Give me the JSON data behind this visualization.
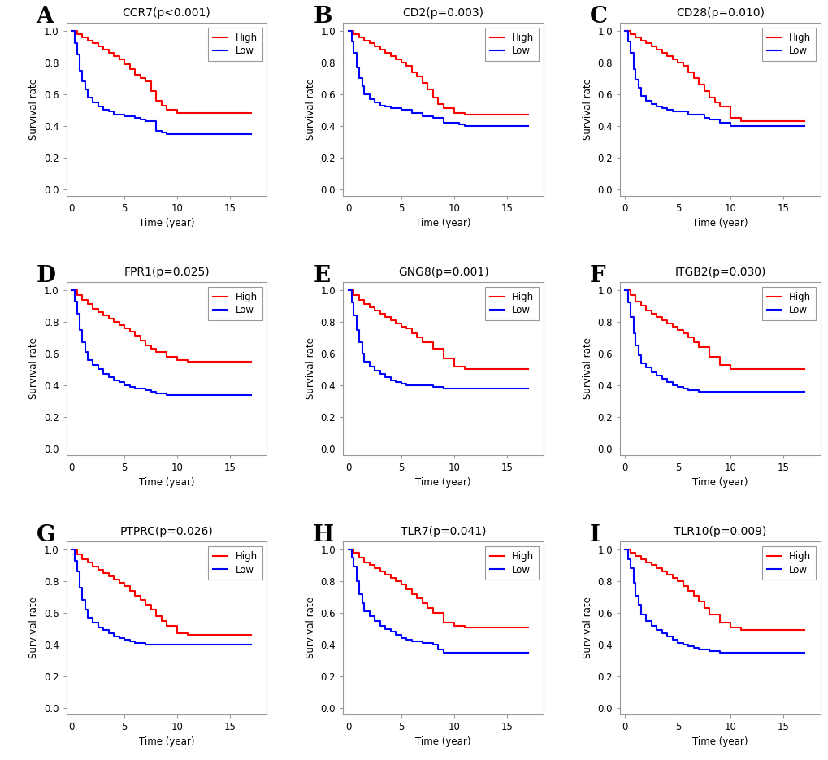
{
  "panels": [
    {
      "label": "A",
      "title": "CCR7(p<0.001)",
      "high": {
        "x": [
          0,
          0.5,
          1.0,
          1.5,
          2.0,
          2.5,
          3.0,
          3.5,
          4.0,
          4.5,
          5.0,
          5.5,
          6.0,
          6.5,
          7.0,
          7.5,
          8.0,
          8.5,
          9.0,
          10.0,
          11.0,
          17.0
        ],
        "y": [
          1.0,
          0.98,
          0.96,
          0.94,
          0.92,
          0.9,
          0.88,
          0.86,
          0.84,
          0.82,
          0.79,
          0.76,
          0.72,
          0.7,
          0.68,
          0.62,
          0.56,
          0.53,
          0.5,
          0.48,
          0.48,
          0.48
        ]
      },
      "low": {
        "x": [
          0,
          0.3,
          0.5,
          0.8,
          1.0,
          1.3,
          1.5,
          2.0,
          2.5,
          3.0,
          3.5,
          4.0,
          5.0,
          6.0,
          6.5,
          7.0,
          8.0,
          8.5,
          9.0,
          11.0,
          17.0
        ],
        "y": [
          1.0,
          0.92,
          0.85,
          0.75,
          0.68,
          0.63,
          0.58,
          0.55,
          0.52,
          0.5,
          0.49,
          0.47,
          0.46,
          0.45,
          0.44,
          0.43,
          0.37,
          0.36,
          0.35,
          0.35,
          0.35
        ]
      }
    },
    {
      "label": "B",
      "title": "CD2(p=0.003)",
      "high": {
        "x": [
          0,
          0.5,
          1.0,
          1.5,
          2.0,
          2.5,
          3.0,
          3.5,
          4.0,
          4.5,
          5.0,
          5.5,
          6.0,
          6.5,
          7.0,
          7.5,
          8.0,
          8.5,
          9.0,
          10.0,
          11.0,
          13.0,
          17.0
        ],
        "y": [
          1.0,
          0.98,
          0.96,
          0.94,
          0.92,
          0.9,
          0.88,
          0.86,
          0.84,
          0.82,
          0.8,
          0.78,
          0.74,
          0.71,
          0.67,
          0.63,
          0.58,
          0.54,
          0.51,
          0.48,
          0.47,
          0.47,
          0.47
        ]
      },
      "low": {
        "x": [
          0,
          0.3,
          0.5,
          0.8,
          1.0,
          1.3,
          1.5,
          2.0,
          2.5,
          3.0,
          3.5,
          4.0,
          5.0,
          6.0,
          7.0,
          8.0,
          9.0,
          10.5,
          11.0,
          17.0
        ],
        "y": [
          1.0,
          0.93,
          0.86,
          0.77,
          0.7,
          0.65,
          0.6,
          0.57,
          0.55,
          0.53,
          0.52,
          0.51,
          0.5,
          0.48,
          0.46,
          0.45,
          0.42,
          0.41,
          0.4,
          0.4
        ]
      }
    },
    {
      "label": "C",
      "title": "CD28(p=0.010)",
      "high": {
        "x": [
          0,
          0.5,
          1.0,
          1.5,
          2.0,
          2.5,
          3.0,
          3.5,
          4.0,
          4.5,
          5.0,
          5.5,
          6.0,
          6.5,
          7.0,
          7.5,
          8.0,
          8.5,
          9.0,
          10.0,
          11.0,
          17.0
        ],
        "y": [
          1.0,
          0.98,
          0.96,
          0.94,
          0.92,
          0.9,
          0.88,
          0.86,
          0.84,
          0.82,
          0.8,
          0.78,
          0.74,
          0.7,
          0.66,
          0.62,
          0.58,
          0.55,
          0.52,
          0.45,
          0.43,
          0.43
        ]
      },
      "low": {
        "x": [
          0,
          0.3,
          0.5,
          0.8,
          1.0,
          1.3,
          1.5,
          2.0,
          2.5,
          3.0,
          3.5,
          4.0,
          4.5,
          5.0,
          6.0,
          7.5,
          8.0,
          9.0,
          10.0,
          11.0,
          17.0
        ],
        "y": [
          1.0,
          0.93,
          0.86,
          0.76,
          0.69,
          0.64,
          0.59,
          0.56,
          0.54,
          0.52,
          0.51,
          0.5,
          0.49,
          0.49,
          0.47,
          0.45,
          0.44,
          0.42,
          0.4,
          0.4,
          0.4
        ]
      }
    },
    {
      "label": "D",
      "title": "FPR1(p=0.025)",
      "high": {
        "x": [
          0,
          0.5,
          1.0,
          1.5,
          2.0,
          2.5,
          3.0,
          3.5,
          4.0,
          4.5,
          5.0,
          5.5,
          6.0,
          6.5,
          7.0,
          7.5,
          8.0,
          9.0,
          10.0,
          11.0,
          17.0
        ],
        "y": [
          1.0,
          0.97,
          0.94,
          0.91,
          0.88,
          0.86,
          0.84,
          0.82,
          0.8,
          0.78,
          0.76,
          0.74,
          0.71,
          0.68,
          0.65,
          0.63,
          0.61,
          0.58,
          0.56,
          0.55,
          0.55
        ]
      },
      "low": {
        "x": [
          0,
          0.3,
          0.5,
          0.8,
          1.0,
          1.3,
          1.5,
          2.0,
          2.5,
          3.0,
          3.5,
          4.0,
          4.5,
          5.0,
          5.5,
          6.0,
          7.0,
          7.5,
          8.0,
          9.0,
          10.0,
          17.0
        ],
        "y": [
          1.0,
          0.93,
          0.85,
          0.75,
          0.67,
          0.61,
          0.56,
          0.53,
          0.5,
          0.47,
          0.45,
          0.43,
          0.42,
          0.4,
          0.39,
          0.38,
          0.37,
          0.36,
          0.35,
          0.34,
          0.34,
          0.34
        ]
      }
    },
    {
      "label": "E",
      "title": "GNG8(p=0.001)",
      "high": {
        "x": [
          0,
          0.5,
          1.0,
          1.5,
          2.0,
          2.5,
          3.0,
          3.5,
          4.0,
          4.5,
          5.0,
          5.5,
          6.0,
          6.5,
          7.0,
          8.0,
          9.0,
          10.0,
          11.0,
          17.0
        ],
        "y": [
          1.0,
          0.97,
          0.94,
          0.91,
          0.89,
          0.87,
          0.85,
          0.83,
          0.81,
          0.79,
          0.77,
          0.76,
          0.73,
          0.7,
          0.67,
          0.63,
          0.57,
          0.52,
          0.5,
          0.5
        ]
      },
      "low": {
        "x": [
          0,
          0.3,
          0.5,
          0.8,
          1.0,
          1.3,
          1.5,
          2.0,
          2.5,
          3.0,
          3.5,
          4.0,
          4.5,
          5.0,
          5.5,
          6.0,
          7.0,
          8.0,
          9.0,
          11.0,
          17.0
        ],
        "y": [
          1.0,
          0.92,
          0.84,
          0.75,
          0.67,
          0.6,
          0.55,
          0.52,
          0.49,
          0.47,
          0.45,
          0.43,
          0.42,
          0.41,
          0.4,
          0.4,
          0.4,
          0.39,
          0.38,
          0.38,
          0.38
        ]
      }
    },
    {
      "label": "F",
      "title": "ITGB2(p=0.030)",
      "high": {
        "x": [
          0,
          0.5,
          1.0,
          1.5,
          2.0,
          2.5,
          3.0,
          3.5,
          4.0,
          4.5,
          5.0,
          5.5,
          6.0,
          6.5,
          7.0,
          8.0,
          9.0,
          10.0,
          11.0,
          17.0
        ],
        "y": [
          1.0,
          0.97,
          0.93,
          0.9,
          0.87,
          0.85,
          0.83,
          0.81,
          0.79,
          0.77,
          0.75,
          0.73,
          0.7,
          0.67,
          0.64,
          0.58,
          0.53,
          0.5,
          0.5,
          0.5
        ]
      },
      "low": {
        "x": [
          0,
          0.3,
          0.5,
          0.8,
          1.0,
          1.3,
          1.5,
          2.0,
          2.5,
          3.0,
          3.5,
          4.0,
          4.5,
          5.0,
          5.5,
          6.0,
          7.0,
          8.0,
          9.0,
          11.0,
          17.0
        ],
        "y": [
          1.0,
          0.92,
          0.83,
          0.73,
          0.65,
          0.59,
          0.54,
          0.51,
          0.48,
          0.46,
          0.44,
          0.42,
          0.4,
          0.39,
          0.38,
          0.37,
          0.36,
          0.36,
          0.36,
          0.36,
          0.36
        ]
      }
    },
    {
      "label": "G",
      "title": "PTPRC(p=0.026)",
      "high": {
        "x": [
          0,
          0.5,
          1.0,
          1.5,
          2.0,
          2.5,
          3.0,
          3.5,
          4.0,
          4.5,
          5.0,
          5.5,
          6.0,
          6.5,
          7.0,
          7.5,
          8.0,
          8.5,
          9.0,
          10.0,
          11.0,
          17.0
        ],
        "y": [
          1.0,
          0.97,
          0.94,
          0.92,
          0.89,
          0.87,
          0.85,
          0.83,
          0.81,
          0.79,
          0.77,
          0.74,
          0.71,
          0.68,
          0.65,
          0.62,
          0.58,
          0.55,
          0.52,
          0.47,
          0.46,
          0.46
        ]
      },
      "low": {
        "x": [
          0,
          0.3,
          0.5,
          0.8,
          1.0,
          1.3,
          1.5,
          2.0,
          2.5,
          3.0,
          3.5,
          4.0,
          4.5,
          5.0,
          5.5,
          6.0,
          7.0,
          8.0,
          9.0,
          10.0,
          11.0,
          17.0
        ],
        "y": [
          1.0,
          0.93,
          0.86,
          0.76,
          0.68,
          0.62,
          0.57,
          0.54,
          0.51,
          0.49,
          0.47,
          0.45,
          0.44,
          0.43,
          0.42,
          0.41,
          0.4,
          0.4,
          0.4,
          0.4,
          0.4,
          0.4
        ]
      }
    },
    {
      "label": "H",
      "title": "TLR7(p=0.041)",
      "high": {
        "x": [
          0,
          0.5,
          1.0,
          1.5,
          2.0,
          2.5,
          3.0,
          3.5,
          4.0,
          4.5,
          5.0,
          5.5,
          6.0,
          6.5,
          7.0,
          7.5,
          8.0,
          9.0,
          10.0,
          11.0,
          17.0
        ],
        "y": [
          1.0,
          0.98,
          0.95,
          0.92,
          0.9,
          0.88,
          0.86,
          0.84,
          0.82,
          0.8,
          0.78,
          0.75,
          0.72,
          0.69,
          0.66,
          0.63,
          0.6,
          0.54,
          0.52,
          0.51,
          0.51
        ]
      },
      "low": {
        "x": [
          0,
          0.3,
          0.5,
          0.8,
          1.0,
          1.3,
          1.5,
          2.0,
          2.5,
          3.0,
          3.5,
          4.0,
          4.5,
          5.0,
          5.5,
          6.0,
          7.0,
          8.0,
          8.5,
          9.0,
          10.0,
          11.0,
          17.0
        ],
        "y": [
          1.0,
          0.95,
          0.89,
          0.8,
          0.72,
          0.66,
          0.61,
          0.58,
          0.55,
          0.52,
          0.5,
          0.48,
          0.46,
          0.44,
          0.43,
          0.42,
          0.41,
          0.4,
          0.37,
          0.35,
          0.35,
          0.35,
          0.35
        ]
      }
    },
    {
      "label": "I",
      "title": "TLR10(p=0.009)",
      "high": {
        "x": [
          0,
          0.5,
          1.0,
          1.5,
          2.0,
          2.5,
          3.0,
          3.5,
          4.0,
          4.5,
          5.0,
          5.5,
          6.0,
          6.5,
          7.0,
          7.5,
          8.0,
          9.0,
          10.0,
          11.0,
          17.0
        ],
        "y": [
          1.0,
          0.98,
          0.96,
          0.94,
          0.92,
          0.9,
          0.88,
          0.86,
          0.84,
          0.82,
          0.8,
          0.77,
          0.74,
          0.71,
          0.67,
          0.63,
          0.59,
          0.54,
          0.51,
          0.49,
          0.49
        ]
      },
      "low": {
        "x": [
          0,
          0.3,
          0.5,
          0.8,
          1.0,
          1.3,
          1.5,
          2.0,
          2.5,
          3.0,
          3.5,
          4.0,
          4.5,
          5.0,
          5.5,
          6.0,
          6.5,
          7.0,
          8.0,
          9.0,
          10.0,
          11.0,
          17.0
        ],
        "y": [
          1.0,
          0.94,
          0.88,
          0.79,
          0.71,
          0.65,
          0.59,
          0.55,
          0.52,
          0.49,
          0.47,
          0.45,
          0.43,
          0.41,
          0.4,
          0.39,
          0.38,
          0.37,
          0.36,
          0.35,
          0.35,
          0.35,
          0.35
        ]
      }
    }
  ],
  "high_color": "#FF0000",
  "low_color": "#0000FF",
  "bg_color": "#FFFFFF",
  "panel_bg": "#FFFFFF",
  "yticks": [
    0.0,
    0.2,
    0.4,
    0.6,
    0.8,
    1.0
  ],
  "xticks": [
    0,
    5,
    10,
    15
  ],
  "xlim": [
    -0.5,
    18.5
  ],
  "ylim": [
    -0.04,
    1.05
  ],
  "xlabel": "Time (year)",
  "ylabel": "Survival rate",
  "linewidth": 1.5,
  "label_fontsize": 20,
  "title_fontsize": 10,
  "axis_fontsize": 8.5,
  "tick_fontsize": 8.5,
  "legend_fontsize": 8.5
}
